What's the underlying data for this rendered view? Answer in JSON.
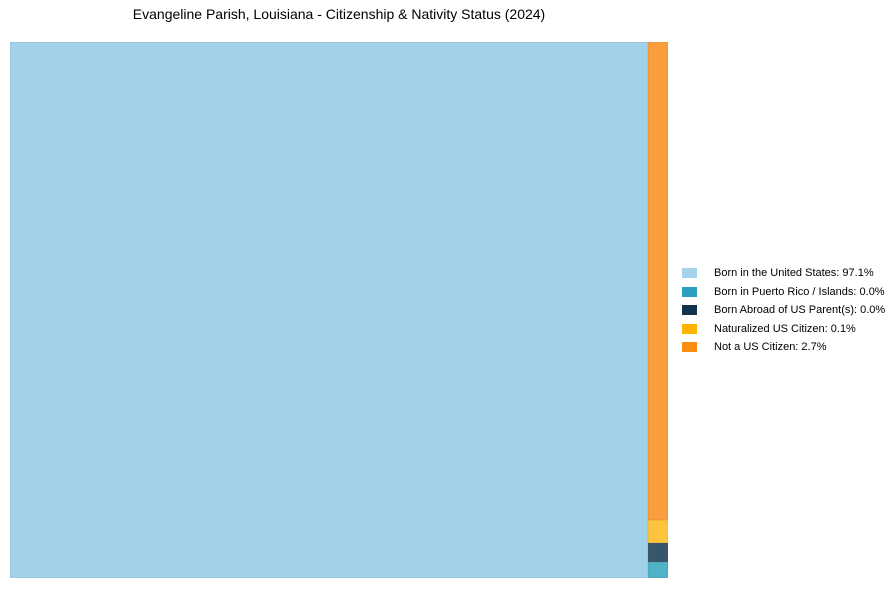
{
  "title": "Evangeline Parish, Louisiana - Citizenship & Nativity Status (2024)",
  "chart_data": {
    "type": "treemap",
    "title": "Evangeline Parish, Louisiana - Citizenship & Nativity Status (2024)",
    "unit": "%",
    "legend_position": "right",
    "categories": [
      "Born in the United States",
      "Born in Puerto Rico / Islands",
      "Born Abroad of US Parent(s)",
      "Naturalized US Citizen",
      "Not a US Citizen"
    ],
    "values": [
      97.1,
      0.0,
      0.0,
      0.1,
      2.7
    ],
    "series": [
      {
        "name": "Born in the United States",
        "value": 97.1,
        "label": "Born in the United States: 97.1%",
        "color": "#A5D3EA",
        "chart_color": "#A2D2E9"
      },
      {
        "name": "Born in Puerto Rico / Islands",
        "value": 0.0,
        "label": "Born in Puerto Rico / Islands: 0.0%",
        "color": "#2BA0BE",
        "chart_color": "#4FB3C8"
      },
      {
        "name": "Born Abroad of US Parent(s)",
        "value": 0.0,
        "label": "Born Abroad of US Parent(s): 0.0%",
        "color": "#0F3350",
        "chart_color": "#36566C"
      },
      {
        "name": "Naturalized US Citizen",
        "value": 0.1,
        "label": "Naturalized US Citizen: 0.1%",
        "color": "#FEB400",
        "chart_color": "#FDC440"
      },
      {
        "name": "Not a US Citizen",
        "value": 2.7,
        "label": "Not a US Citizen: 2.7%",
        "color": "#FA8D0F",
        "chart_color": "#FA9D3C"
      }
    ]
  }
}
